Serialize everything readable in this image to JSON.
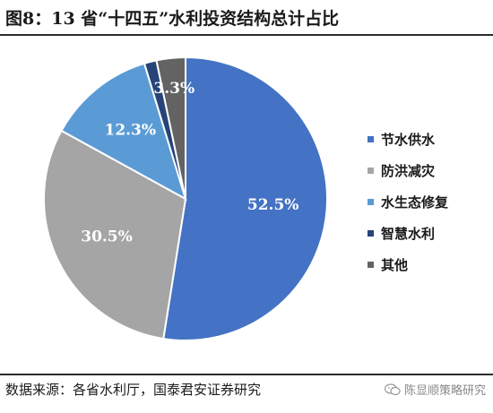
{
  "title": "图8：13 省“十四五”水利投资结构总计占比",
  "source": "数据来源：各省水利厅，国泰君安证券研究",
  "watermark": "陈显顺策略研究",
  "chart_data": {
    "type": "pie",
    "title": "图8：13 省“十四五”水利投资结构总计占比",
    "labels": [
      "节水供水",
      "防洪减灾",
      "水生态修复",
      "智慧水利",
      "其他"
    ],
    "values": [
      52.5,
      30.5,
      12.3,
      1.4,
      3.3
    ],
    "display_labels": [
      "52.5%",
      "30.5%",
      "12.3%",
      "1.4%",
      "3.3%"
    ],
    "colors": [
      "#4472C4",
      "#A5A5A5",
      "#5B9BD5",
      "#264478",
      "#636363"
    ],
    "legend_position": "right"
  }
}
